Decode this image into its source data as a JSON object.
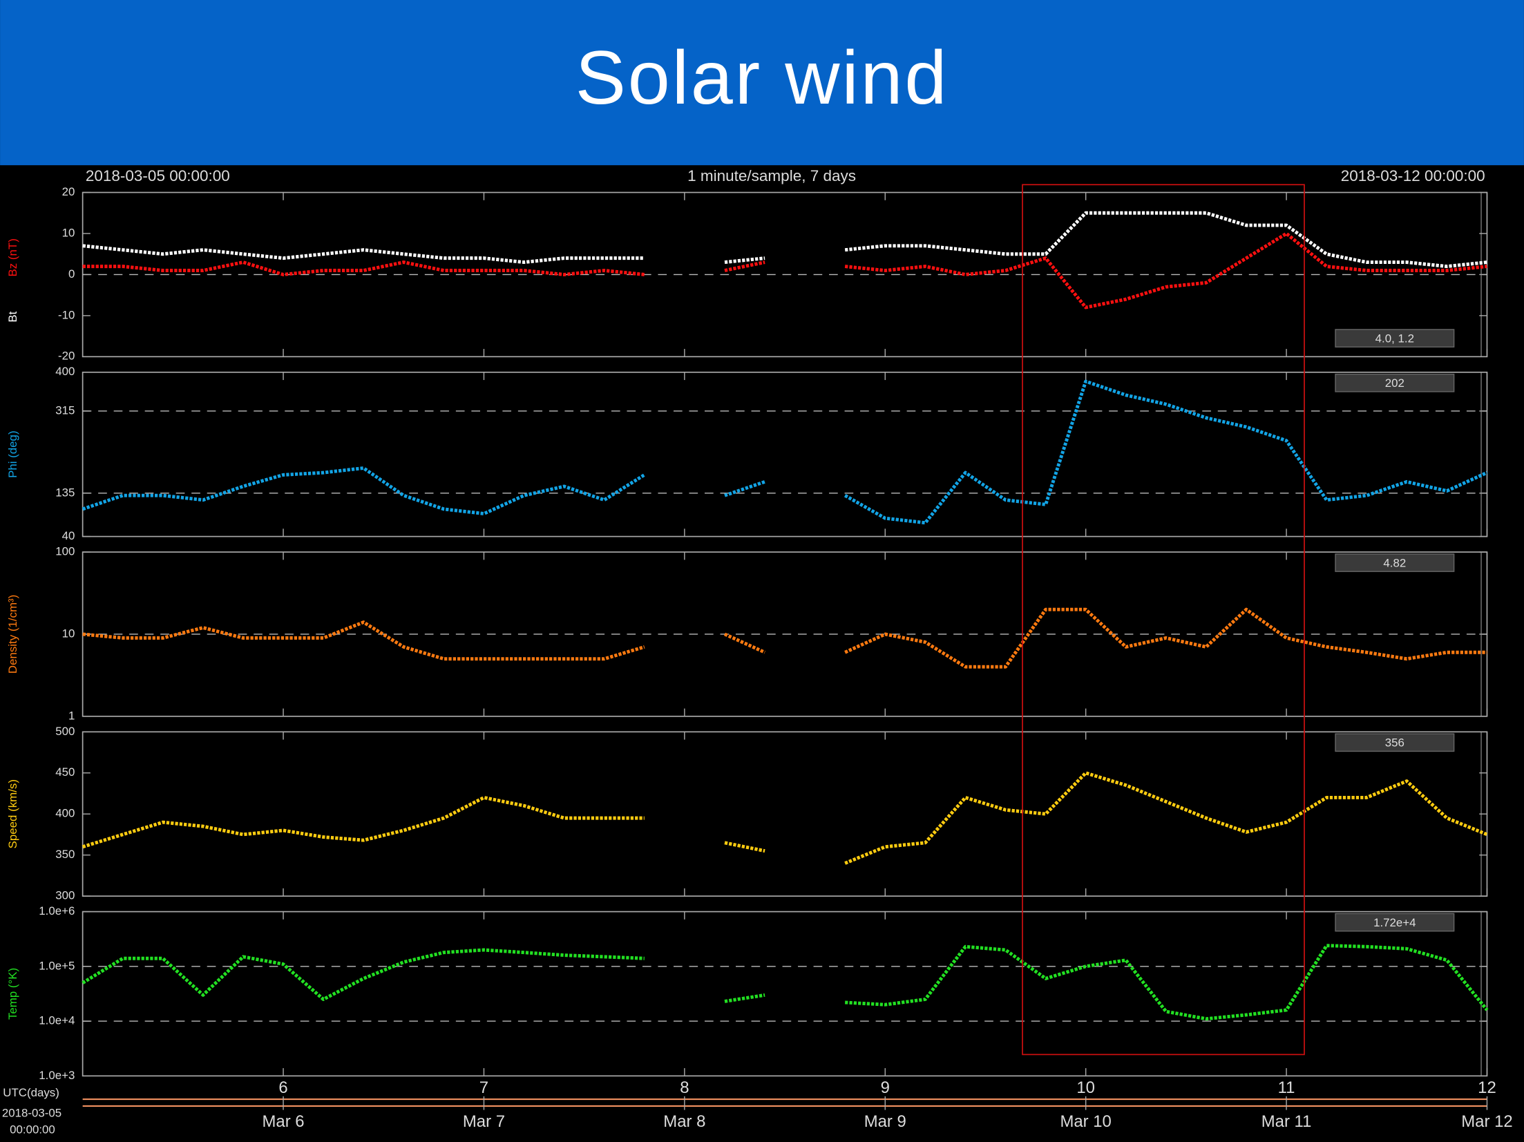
{
  "header": {
    "title": "Solar wind"
  },
  "plot_header": {
    "start": "2018-03-05 00:00:00",
    "center": "1 minute/sample, 7 days",
    "end": "2018-03-12 00:00:00"
  },
  "time_axis": {
    "label": "UTC(days)",
    "start_date": "2018-03-05",
    "start_time": "00:00:00",
    "ticks": [
      {
        "value": 6,
        "label": "Mar 6"
      },
      {
        "value": 7,
        "label": "Mar 7"
      },
      {
        "value": 8,
        "label": "Mar 8"
      },
      {
        "value": 9,
        "label": "Mar 9"
      },
      {
        "value": 10,
        "label": "Mar 10"
      },
      {
        "value": 11,
        "label": "Mar 11"
      },
      {
        "value": 12,
        "label": "Mar 12"
      }
    ]
  },
  "chart_data": [
    {
      "type": "line",
      "value_box": "4.0, 1.2",
      "xlim": [
        5,
        12
      ],
      "ylim": [
        -20,
        20
      ],
      "yticks": [
        -20,
        -10,
        0,
        10,
        20
      ],
      "ref_lines": [
        0
      ],
      "x": [
        5.0,
        5.2,
        5.4,
        5.6,
        5.8,
        6.0,
        6.2,
        6.4,
        6.6,
        6.8,
        7.0,
        7.2,
        7.4,
        7.6,
        7.8,
        8.0,
        8.2,
        8.4,
        8.6,
        8.8,
        9.0,
        9.2,
        9.4,
        9.6,
        9.8,
        10.0,
        10.2,
        10.4,
        10.6,
        10.8,
        11.0,
        11.2,
        11.4,
        11.6,
        11.8,
        12.0
      ],
      "series": [
        {
          "name": "Bz (nT)",
          "color": "#ff1010",
          "values": [
            2,
            2,
            1,
            1,
            3,
            0,
            1,
            1,
            3,
            1,
            1,
            1,
            0,
            1,
            0,
            null,
            1,
            3,
            null,
            2,
            1,
            2,
            0,
            1,
            4,
            -8,
            -6,
            -3,
            -2,
            4,
            10,
            2,
            1,
            1,
            1,
            2
          ]
        },
        {
          "name": "Bt",
          "color": "#ffffff",
          "values": [
            7,
            6,
            5,
            6,
            5,
            4,
            5,
            6,
            5,
            4,
            4,
            3,
            4,
            4,
            4,
            null,
            3,
            4,
            null,
            6,
            7,
            7,
            6,
            5,
            5,
            15,
            15,
            15,
            15,
            12,
            12,
            5,
            3,
            3,
            2,
            3
          ]
        }
      ]
    },
    {
      "type": "line",
      "ylabel": "Phi (deg)",
      "color": "#12a4e6",
      "value_box": "202",
      "xlim": [
        5,
        12
      ],
      "ylim": [
        40,
        400
      ],
      "yticks": [
        40,
        135,
        315,
        400
      ],
      "ref_lines": [
        135,
        315
      ],
      "x": [
        5.0,
        5.2,
        5.4,
        5.6,
        5.8,
        6.0,
        6.2,
        6.4,
        6.6,
        6.8,
        7.0,
        7.2,
        7.4,
        7.6,
        7.8,
        8.0,
        8.2,
        8.4,
        8.6,
        8.8,
        9.0,
        9.2,
        9.4,
        9.6,
        9.8,
        10.0,
        10.2,
        10.4,
        10.6,
        10.8,
        11.0,
        11.2,
        11.4,
        11.6,
        11.8,
        12.0
      ],
      "values": [
        100,
        130,
        130,
        120,
        150,
        175,
        180,
        190,
        130,
        100,
        90,
        130,
        150,
        120,
        175,
        null,
        130,
        160,
        null,
        130,
        80,
        70,
        180,
        120,
        110,
        380,
        350,
        330,
        300,
        280,
        250,
        120,
        130,
        160,
        140,
        180
      ]
    },
    {
      "type": "line",
      "ylabel": "Density (1/cm³)",
      "color": "#ff7a10",
      "value_box": "4.82",
      "log_y": true,
      "xlim": [
        5,
        12
      ],
      "ylim": [
        1,
        100
      ],
      "yticks": [
        1,
        10,
        100
      ],
      "ref_lines": [
        10
      ],
      "x": [
        5.0,
        5.2,
        5.4,
        5.6,
        5.8,
        6.0,
        6.2,
        6.4,
        6.6,
        6.8,
        7.0,
        7.2,
        7.4,
        7.6,
        7.8,
        8.0,
        8.2,
        8.4,
        8.6,
        8.8,
        9.0,
        9.2,
        9.4,
        9.6,
        9.8,
        10.0,
        10.2,
        10.4,
        10.6,
        10.8,
        11.0,
        11.2,
        11.4,
        11.6,
        11.8,
        12.0
      ],
      "values": [
        10,
        9,
        9,
        12,
        9,
        9,
        9,
        14,
        7,
        5,
        5,
        5,
        5,
        5,
        7,
        null,
        10,
        6,
        null,
        6,
        10,
        8,
        4,
        4,
        20,
        20,
        7,
        9,
        7,
        20,
        9,
        7,
        6,
        5,
        6,
        6
      ]
    },
    {
      "type": "line",
      "ylabel": "Speed (km/s)",
      "color": "#ffcc10",
      "value_box": "356",
      "xlim": [
        5,
        12
      ],
      "ylim": [
        300,
        500
      ],
      "yticks": [
        300,
        350,
        400,
        450,
        500
      ],
      "ref_lines": [],
      "x": [
        5.0,
        5.2,
        5.4,
        5.6,
        5.8,
        6.0,
        6.2,
        6.4,
        6.6,
        6.8,
        7.0,
        7.2,
        7.4,
        7.6,
        7.8,
        8.0,
        8.2,
        8.4,
        8.6,
        8.8,
        9.0,
        9.2,
        9.4,
        9.6,
        9.8,
        10.0,
        10.2,
        10.4,
        10.6,
        10.8,
        11.0,
        11.2,
        11.4,
        11.6,
        11.8,
        12.0
      ],
      "values": [
        360,
        375,
        390,
        385,
        375,
        380,
        372,
        368,
        380,
        395,
        420,
        410,
        395,
        395,
        395,
        null,
        365,
        355,
        null,
        340,
        360,
        365,
        420,
        405,
        400,
        450,
        435,
        415,
        395,
        378,
        390,
        420,
        420,
        440,
        395,
        375
      ]
    },
    {
      "type": "line",
      "ylabel": "Temp (°K)",
      "color": "#22e022",
      "value_box": "1.72e+4",
      "log_y": true,
      "xlim": [
        5,
        12
      ],
      "ylim": [
        1000,
        1000000
      ],
      "yticks": [
        {
          "value": 1000,
          "label": "1.0e+3"
        },
        {
          "value": 10000,
          "label": "1.0e+4"
        },
        {
          "value": 100000,
          "label": "1.0e+5"
        },
        {
          "value": 1000000,
          "label": "1.0e+6"
        }
      ],
      "ref_lines": [
        10000,
        100000
      ],
      "xticks": [
        6,
        7,
        8,
        9,
        10,
        11,
        12
      ],
      "x": [
        5.0,
        5.2,
        5.4,
        5.6,
        5.8,
        6.0,
        6.2,
        6.4,
        6.6,
        6.8,
        7.0,
        7.2,
        7.4,
        7.6,
        7.8,
        8.0,
        8.2,
        8.4,
        8.6,
        8.8,
        9.0,
        9.2,
        9.4,
        9.6,
        9.8,
        10.0,
        10.2,
        10.4,
        10.6,
        10.8,
        11.0,
        11.2,
        11.4,
        11.6,
        11.8,
        12.0
      ],
      "values": [
        50000,
        140000,
        140000,
        30000,
        150000,
        110000,
        25000,
        60000,
        120000,
        180000,
        200000,
        180000,
        160000,
        150000,
        140000,
        null,
        23000,
        30000,
        null,
        22000,
        20000,
        25000,
        230000,
        200000,
        60000,
        100000,
        130000,
        15000,
        11000,
        13000,
        16000,
        240000,
        230000,
        210000,
        130000,
        16000
      ]
    }
  ]
}
